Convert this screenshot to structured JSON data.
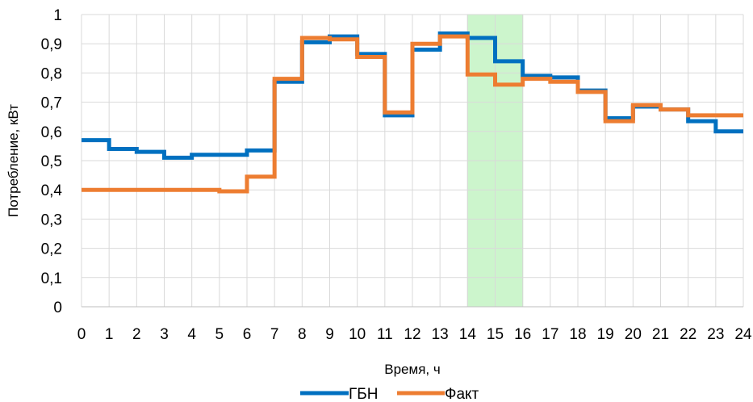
{
  "chart_data": {
    "type": "line",
    "step": true,
    "xlabel": "Время, ч",
    "ylabel": "Потребление, кВт",
    "xlim": [
      0,
      24
    ],
    "ylim": [
      0,
      1
    ],
    "x_ticks": [
      "0",
      "1",
      "2",
      "3",
      "4",
      "5",
      "6",
      "7",
      "8",
      "9",
      "10",
      "11",
      "12",
      "13",
      "14",
      "15",
      "16",
      "17",
      "18",
      "19",
      "20",
      "21",
      "22",
      "23",
      "24"
    ],
    "y_ticks": [
      "0",
      "0,1",
      "0,2",
      "0,3",
      "0,4",
      "0,5",
      "0,6",
      "0,7",
      "0,8",
      "0,9",
      "1"
    ],
    "grid": true,
    "legend_position": "bottom",
    "highlight": {
      "x_start": 14,
      "x_end": 16,
      "color": "#ccf5cc"
    },
    "series": [
      {
        "name": "ГБН",
        "color": "#0070c0",
        "values": [
          0.57,
          0.54,
          0.53,
          0.51,
          0.52,
          0.52,
          0.535,
          0.77,
          0.905,
          0.925,
          0.865,
          0.655,
          0.88,
          0.935,
          0.92,
          0.84,
          0.79,
          0.785,
          0.74,
          0.645,
          0.685,
          0.675,
          0.635,
          0.6
        ]
      },
      {
        "name": "Факт",
        "color": "#ed7d31",
        "values": [
          0.4,
          0.4,
          0.4,
          0.4,
          0.4,
          0.395,
          0.445,
          0.78,
          0.92,
          0.915,
          0.855,
          0.665,
          0.9,
          0.925,
          0.795,
          0.76,
          0.78,
          0.77,
          0.735,
          0.635,
          0.69,
          0.675,
          0.655,
          0.655
        ]
      }
    ]
  }
}
